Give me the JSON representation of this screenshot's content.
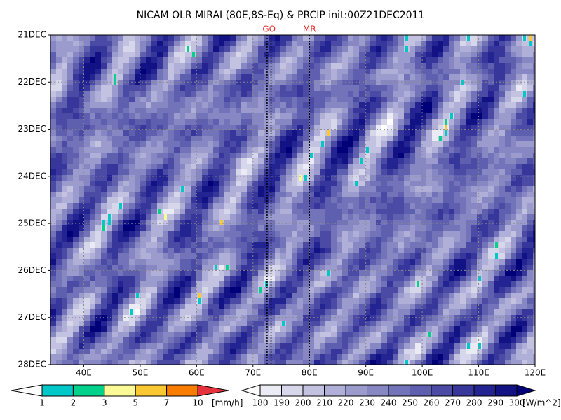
{
  "chart_data": {
    "type": "hovmoller",
    "title": "NICAM OLR MIRAI (80E,8S-Eq) & PRCIP init:00Z21DEC2011",
    "xlim": [
      34.1,
      120
    ],
    "xticks": [
      {
        "value": 40,
        "label": "40E"
      },
      {
        "value": 50,
        "label": "50E"
      },
      {
        "value": 60,
        "label": "60E"
      },
      {
        "value": 70,
        "label": "70E"
      },
      {
        "value": 80,
        "label": "80E"
      },
      {
        "value": 90,
        "label": "90E"
      },
      {
        "value": 100,
        "label": "100E"
      },
      {
        "value": 110,
        "label": "110E"
      },
      {
        "value": 120,
        "label": "120E"
      }
    ],
    "ylim": [
      21,
      28
    ],
    "yticks": [
      {
        "value": 21,
        "label": "21DEC"
      },
      {
        "value": 22,
        "label": "22DEC"
      },
      {
        "value": 23,
        "label": "23DEC"
      },
      {
        "value": 24,
        "label": "24DEC"
      },
      {
        "value": 25,
        "label": "25DEC"
      },
      {
        "value": 26,
        "label": "26DEC"
      },
      {
        "value": 27,
        "label": "27DEC"
      },
      {
        "value": 28,
        "label": "28DEC"
      }
    ],
    "grid": true,
    "markers": [
      {
        "label": "GO",
        "x": [
          72.5,
          73.2
        ]
      },
      {
        "label": "MR",
        "x": [
          80
        ]
      }
    ],
    "precip_scale": {
      "unit": "[mm/h]",
      "levels": [
        1,
        2,
        3,
        5,
        7,
        10
      ],
      "colors": [
        "#ffffff",
        "#00c8c8",
        "#00d28c",
        "#fafa96",
        "#fac832",
        "#fa7d00",
        "#e6323c"
      ]
    },
    "olr_scale": {
      "unit": "[W/m^2]",
      "levels": [
        180,
        190,
        200,
        210,
        220,
        230,
        240,
        250,
        260,
        270,
        280,
        290,
        300
      ],
      "colors": [
        "#ffffff",
        "#ebebf5",
        "#d7d7eb",
        "#c3c3e1",
        "#afafd7",
        "#9b9bcd",
        "#8787c3",
        "#7373b9",
        "#5f5faf",
        "#4b4ba5",
        "#37379b",
        "#232391",
        "#121285",
        "#000078"
      ]
    }
  }
}
